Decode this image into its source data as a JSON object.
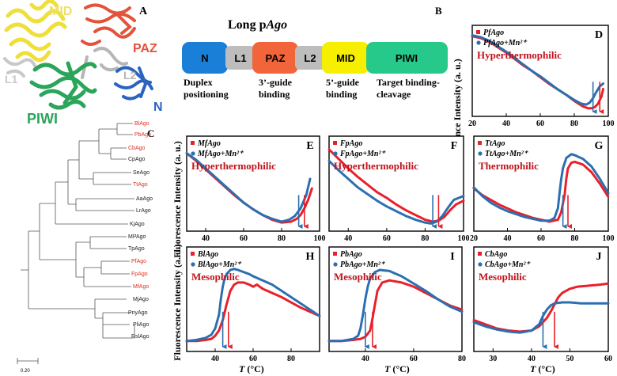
{
  "panel_letters": {
    "a": "A",
    "b": "B",
    "c": "C"
  },
  "structure": {
    "labels": [
      "MID",
      "PAZ",
      "L2",
      "L1",
      "PIWI",
      "N"
    ],
    "colors": {
      "MID": "#eedf6b",
      "PAZ": "#e3533a",
      "L2": "#b6b6b6",
      "L1": "#c8c8c8",
      "PIWI": "#2aa55a",
      "N": "#2a63c0"
    }
  },
  "domain_diagram": {
    "title_prefix": "Long p",
    "title_italic": "Ago",
    "domains": [
      {
        "name": "N",
        "color": "#1a7fd6"
      },
      {
        "name": "L1",
        "color": "#bdbdbd"
      },
      {
        "name": "PAZ",
        "color": "#f2653a"
      },
      {
        "name": "L2",
        "color": "#bdbdbd"
      },
      {
        "name": "MID",
        "color": "#f6f000"
      },
      {
        "name": "PIWI",
        "color": "#26c98a"
      }
    ],
    "functions": [
      {
        "line1": "Duplex",
        "line2": "positioning"
      },
      {
        "line1": "3’-guide",
        "line2": "binding"
      },
      {
        "line1": "5’-guide",
        "line2": "binding"
      },
      {
        "line1": "Target binding-",
        "line2": "cleavage"
      }
    ]
  },
  "tree": {
    "leaves": [
      {
        "name": "BlAgo",
        "highlight": true
      },
      {
        "name": "PbAgo",
        "highlight": true
      },
      {
        "name": "CbAgo",
        "highlight": true
      },
      {
        "name": "CpAgo",
        "highlight": false
      },
      {
        "name": "SeAgo",
        "highlight": false
      },
      {
        "name": "TtAgo",
        "highlight": true
      },
      {
        "name": "AaAgo",
        "highlight": false
      },
      {
        "name": "LrAgo",
        "highlight": false
      },
      {
        "name": "KjAgo",
        "highlight": false
      },
      {
        "name": "MPAgo",
        "highlight": false
      },
      {
        "name": "TpAgo",
        "highlight": false
      },
      {
        "name": "PfAgo",
        "highlight": true
      },
      {
        "name": "FpAgo",
        "highlight": true
      },
      {
        "name": "MfAgo",
        "highlight": true
      },
      {
        "name": "MjAgo",
        "highlight": false
      },
      {
        "name": "PnyAgo",
        "highlight": false
      },
      {
        "name": "PliAgo",
        "highlight": false
      },
      {
        "name": "RslAgo",
        "highlight": false
      }
    ],
    "scale_label": "0.20",
    "highlight_color": "#e0301e"
  },
  "axis_text": {
    "ylabel": "Fluorescence Intensity (a. u.)",
    "xlabel_T": "T",
    "xlabel_unit": " (°C)"
  },
  "colors": {
    "red": "#e8202a",
    "blue": "#2b6fb0",
    "condition": "#c0121b"
  },
  "chart_data": [
    {
      "type": "line",
      "panel": "D",
      "ago": "PfAgo",
      "mn_label": "PfAgo+Mn²⁺",
      "condition": "Hyperthermophilic",
      "xlim": [
        20,
        100
      ],
      "xticks": [
        20,
        40,
        60,
        80,
        100
      ],
      "series": [
        {
          "name": "PfAgo",
          "color": "red",
          "x": [
            20,
            25,
            30,
            35,
            40,
            45,
            50,
            55,
            60,
            65,
            70,
            75,
            80,
            85,
            88,
            90,
            92,
            94,
            96,
            97
          ],
          "y": [
            0.88,
            0.86,
            0.82,
            0.76,
            0.7,
            0.63,
            0.56,
            0.5,
            0.43,
            0.36,
            0.3,
            0.24,
            0.17,
            0.11,
            0.09,
            0.09,
            0.1,
            0.14,
            0.22,
            0.3
          ]
        },
        {
          "name": "PfAgo+Mn²⁺",
          "color": "blue",
          "x": [
            20,
            25,
            30,
            35,
            40,
            45,
            50,
            55,
            60,
            65,
            70,
            75,
            80,
            84,
            87,
            89,
            91,
            93,
            95,
            97
          ],
          "y": [
            0.89,
            0.87,
            0.83,
            0.77,
            0.71,
            0.64,
            0.57,
            0.5,
            0.44,
            0.37,
            0.3,
            0.24,
            0.18,
            0.14,
            0.13,
            0.15,
            0.2,
            0.27,
            0.33,
            0.36
          ]
        }
      ],
      "arrows": [
        {
          "x": 91,
          "color": "blue"
        },
        {
          "x": 95,
          "color": "red"
        }
      ]
    },
    {
      "type": "line",
      "panel": "E",
      "ago": "MfAgo",
      "mn_label": "MfAgo+Mn²⁺",
      "condition": "Hyperthermophilic",
      "xlim": [
        30,
        100
      ],
      "xticks": [
        40,
        60,
        80,
        100
      ],
      "series": [
        {
          "name": "MfAgo",
          "color": "red",
          "x": [
            30,
            35,
            40,
            45,
            50,
            55,
            60,
            65,
            70,
            75,
            80,
            85,
            88,
            90,
            92,
            94,
            96
          ],
          "y": [
            0.82,
            0.74,
            0.65,
            0.56,
            0.47,
            0.38,
            0.3,
            0.23,
            0.17,
            0.12,
            0.09,
            0.1,
            0.13,
            0.17,
            0.24,
            0.33,
            0.45
          ]
        },
        {
          "name": "MfAgo+Mn²⁺",
          "color": "blue",
          "x": [
            30,
            35,
            40,
            45,
            50,
            55,
            60,
            65,
            70,
            75,
            80,
            84,
            87,
            90,
            93,
            95
          ],
          "y": [
            0.82,
            0.75,
            0.66,
            0.57,
            0.48,
            0.39,
            0.3,
            0.23,
            0.17,
            0.13,
            0.1,
            0.12,
            0.16,
            0.24,
            0.38,
            0.55
          ]
        }
      ],
      "arrows": [
        {
          "x": 89,
          "color": "blue"
        },
        {
          "x": 92,
          "color": "red"
        }
      ]
    },
    {
      "type": "line",
      "panel": "F",
      "ago": "FpAgo",
      "mn_label": "FpAgo+Mn²⁺",
      "condition": "Hyperthermophilic",
      "xlim": [
        30,
        100
      ],
      "xticks": [
        40,
        60,
        80,
        100
      ],
      "series": [
        {
          "name": "FpAgo",
          "color": "red",
          "x": [
            30,
            35,
            40,
            45,
            50,
            55,
            60,
            65,
            70,
            75,
            80,
            84,
            87,
            90,
            93,
            96,
            100
          ],
          "y": [
            0.86,
            0.76,
            0.66,
            0.57,
            0.49,
            0.41,
            0.35,
            0.28,
            0.22,
            0.17,
            0.12,
            0.1,
            0.11,
            0.15,
            0.22,
            0.28,
            0.32
          ]
        },
        {
          "name": "FpAgo+Mn²⁺",
          "color": "blue",
          "x": [
            30,
            35,
            40,
            45,
            50,
            55,
            60,
            65,
            70,
            75,
            80,
            83,
            86,
            89,
            92,
            95,
            100
          ],
          "y": [
            0.74,
            0.64,
            0.55,
            0.46,
            0.39,
            0.32,
            0.26,
            0.21,
            0.16,
            0.12,
            0.09,
            0.08,
            0.1,
            0.16,
            0.25,
            0.33,
            0.37
          ]
        }
      ],
      "arrows": [
        {
          "x": 84,
          "color": "blue"
        },
        {
          "x": 87,
          "color": "red"
        }
      ]
    },
    {
      "type": "line",
      "panel": "G",
      "ago": "TtAgo",
      "mn_label": "TtAgo+Mn²⁺",
      "condition": "Thermophilic",
      "xlim": [
        20,
        100
      ],
      "xticks": [
        20,
        40,
        60,
        80,
        100
      ],
      "series": [
        {
          "name": "TtAgo",
          "color": "red",
          "x": [
            20,
            25,
            30,
            35,
            40,
            45,
            50,
            55,
            60,
            65,
            70,
            72,
            74,
            75,
            76,
            78,
            80,
            85,
            90,
            95,
            100
          ],
          "y": [
            0.45,
            0.38,
            0.33,
            0.28,
            0.24,
            0.2,
            0.17,
            0.14,
            0.12,
            0.1,
            0.12,
            0.2,
            0.38,
            0.55,
            0.66,
            0.72,
            0.73,
            0.7,
            0.62,
            0.5,
            0.36
          ]
        },
        {
          "name": "TtAgo+Mn²⁺",
          "color": "blue",
          "x": [
            20,
            25,
            30,
            35,
            40,
            45,
            50,
            55,
            60,
            65,
            68,
            70,
            71,
            72,
            73,
            75,
            78,
            80,
            85,
            90,
            95,
            100
          ],
          "y": [
            0.46,
            0.37,
            0.3,
            0.25,
            0.21,
            0.18,
            0.15,
            0.13,
            0.11,
            0.11,
            0.14,
            0.24,
            0.4,
            0.55,
            0.66,
            0.77,
            0.81,
            0.8,
            0.76,
            0.68,
            0.55,
            0.4
          ]
        }
      ],
      "arrows": [
        {
          "x": 73,
          "color": "blue"
        },
        {
          "x": 76,
          "color": "red"
        }
      ]
    },
    {
      "type": "line",
      "panel": "H",
      "ago": "BlAgo",
      "mn_label": "BlAgo+Mn²⁺",
      "condition": "Mesophilic",
      "xlim": [
        25,
        95
      ],
      "xticks": [
        40,
        60,
        80
      ],
      "series": [
        {
          "name": "BlAgo",
          "color": "red",
          "x": [
            25,
            30,
            35,
            38,
            40,
            42,
            44,
            46,
            48,
            50,
            52,
            55,
            58,
            60,
            62,
            65,
            70,
            75,
            80,
            85,
            90,
            95
          ],
          "y": [
            0.1,
            0.1,
            0.11,
            0.12,
            0.15,
            0.2,
            0.3,
            0.45,
            0.58,
            0.64,
            0.66,
            0.66,
            0.64,
            0.62,
            0.64,
            0.6,
            0.56,
            0.52,
            0.47,
            0.42,
            0.38,
            0.34
          ]
        },
        {
          "name": "BlAgo+Mn²⁺",
          "color": "blue",
          "x": [
            25,
            30,
            35,
            38,
            40,
            42,
            43,
            44,
            45,
            46,
            48,
            50,
            52,
            55,
            58,
            60,
            65,
            70,
            75,
            80,
            85,
            90,
            95
          ],
          "y": [
            0.1,
            0.11,
            0.13,
            0.16,
            0.22,
            0.35,
            0.5,
            0.62,
            0.7,
            0.74,
            0.78,
            0.79,
            0.78,
            0.76,
            0.74,
            0.72,
            0.68,
            0.64,
            0.58,
            0.52,
            0.46,
            0.4,
            0.34
          ]
        }
      ],
      "arrows": [
        {
          "x": 44,
          "color": "blue"
        },
        {
          "x": 47,
          "color": "red"
        }
      ]
    },
    {
      "type": "line",
      "panel": "I",
      "ago": "PbAgo",
      "mn_label": "PbAgo+Mn²⁺",
      "condition": "Mesophilic",
      "xlim": [
        25,
        80
      ],
      "xticks": [
        40,
        60,
        80
      ],
      "series": [
        {
          "name": "PbAgo",
          "color": "red",
          "x": [
            25,
            30,
            35,
            38,
            40,
            42,
            43,
            44,
            45,
            47,
            50,
            55,
            60,
            65,
            70,
            75,
            80
          ],
          "y": [
            0.1,
            0.1,
            0.11,
            0.12,
            0.14,
            0.2,
            0.32,
            0.45,
            0.58,
            0.66,
            0.68,
            0.66,
            0.62,
            0.56,
            0.5,
            0.44,
            0.4
          ]
        },
        {
          "name": "PbAgo+Mn²⁺",
          "color": "blue",
          "x": [
            25,
            30,
            35,
            37,
            38,
            39,
            40,
            41,
            42,
            44,
            46,
            50,
            55,
            60,
            65,
            70,
            75,
            80
          ],
          "y": [
            0.1,
            0.1,
            0.12,
            0.15,
            0.22,
            0.35,
            0.5,
            0.62,
            0.7,
            0.76,
            0.78,
            0.77,
            0.72,
            0.65,
            0.58,
            0.5,
            0.43,
            0.38
          ]
        }
      ],
      "arrows": [
        {
          "x": 40,
          "color": "blue"
        },
        {
          "x": 43,
          "color": "red"
        }
      ]
    },
    {
      "type": "line",
      "panel": "J",
      "ago": "CbAgo",
      "mn_label": "CbAgo+Mn²⁺",
      "condition": "Mesophilic",
      "xlim": [
        25,
        60
      ],
      "xticks": [
        30,
        40,
        50,
        60
      ],
      "series": [
        {
          "name": "CbAgo",
          "color": "red",
          "x": [
            25,
            28,
            31,
            34,
            37,
            40,
            42,
            44,
            45,
            46,
            47,
            48,
            50,
            52,
            55,
            58,
            60
          ],
          "y": [
            0.3,
            0.26,
            0.22,
            0.2,
            0.19,
            0.2,
            0.24,
            0.32,
            0.38,
            0.45,
            0.52,
            0.56,
            0.6,
            0.62,
            0.63,
            0.64,
            0.65
          ]
        },
        {
          "name": "CbAgo+Mn²⁺",
          "color": "blue",
          "x": [
            25,
            28,
            31,
            34,
            37,
            40,
            42,
            43,
            44,
            45,
            46,
            48,
            50,
            53,
            56,
            60
          ],
          "y": [
            0.28,
            0.24,
            0.21,
            0.19,
            0.18,
            0.2,
            0.26,
            0.34,
            0.4,
            0.44,
            0.46,
            0.47,
            0.47,
            0.46,
            0.46,
            0.46
          ]
        }
      ],
      "arrows": [
        {
          "x": 43,
          "color": "blue"
        },
        {
          "x": 46,
          "color": "red"
        }
      ]
    }
  ]
}
